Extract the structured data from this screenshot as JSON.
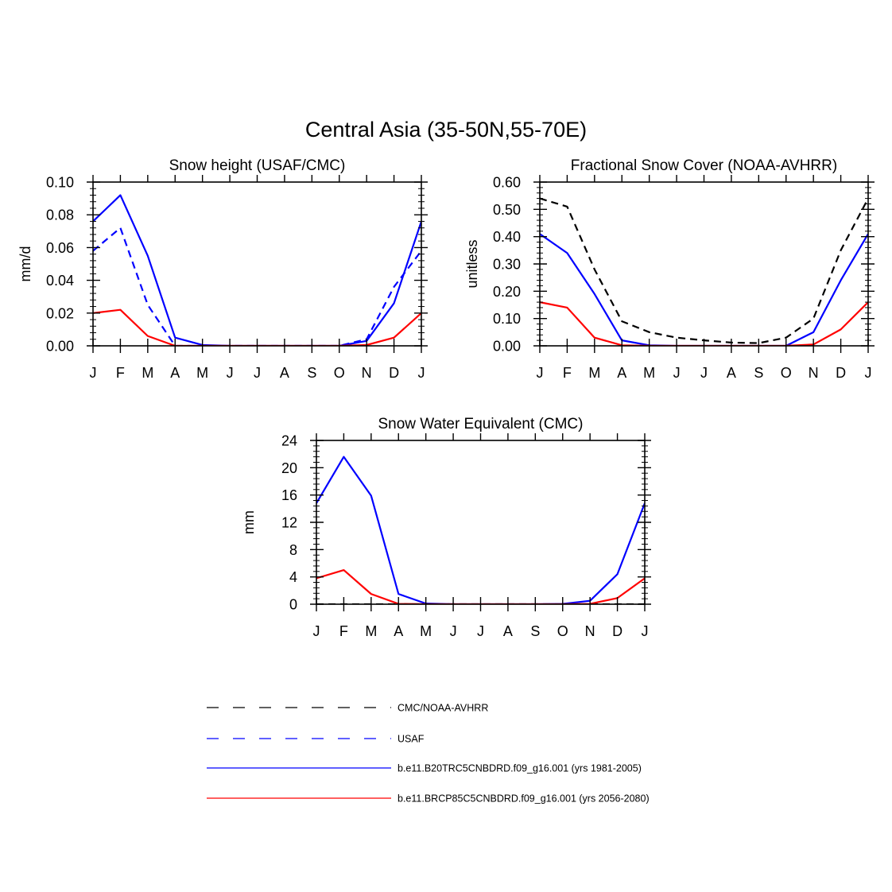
{
  "figure": {
    "title": "Central Asia (35-50N,55-70E)"
  },
  "chart_data": [
    {
      "type": "line",
      "title": "Snow height (USAF/CMC)",
      "xlabel": "",
      "ylabel": "mm/d",
      "categories": [
        "J",
        "F",
        "M",
        "A",
        "M",
        "J",
        "J",
        "A",
        "S",
        "O",
        "N",
        "D",
        "J"
      ],
      "ylim": [
        0,
        0.1
      ],
      "yticks": [
        0,
        0.02,
        0.04,
        0.06,
        0.08,
        0.1
      ],
      "ytick_labels": [
        "0.00",
        "0.02",
        "0.04",
        "0.06",
        "0.08",
        "0.10"
      ],
      "grid": false,
      "series": [
        {
          "name": "USAF",
          "color": "#0000ff",
          "dash": true,
          "values": [
            0.058,
            0.072,
            0.025,
            0.0,
            0.0,
            0.0,
            0.0,
            0.0,
            0.0,
            0.0,
            0.004,
            0.036,
            0.058
          ]
        },
        {
          "name": "b.e11.B20TRC5CNBDRD.f09_g16.001 (yrs 1981-2005)",
          "color": "#0000ff",
          "dash": false,
          "values": [
            0.076,
            0.092,
            0.055,
            0.005,
            0.0005,
            0.0,
            0.0,
            0.0,
            0.0,
            0.0,
            0.003,
            0.026,
            0.076
          ]
        },
        {
          "name": "b.e11.BRCP85C5CNBDRD.f09_g16.001 (yrs 2056-2080)",
          "color": "#ff0000",
          "dash": false,
          "values": [
            0.02,
            0.022,
            0.006,
            0.0,
            0.0,
            0.0,
            0.0,
            0.0,
            0.0,
            0.0,
            0.0005,
            0.005,
            0.02
          ]
        }
      ]
    },
    {
      "type": "line",
      "title": "Fractional Snow Cover (NOAA-AVHRR)",
      "xlabel": "",
      "ylabel": "unitless",
      "categories": [
        "J",
        "F",
        "M",
        "A",
        "M",
        "J",
        "J",
        "A",
        "S",
        "O",
        "N",
        "D",
        "J"
      ],
      "ylim": [
        0,
        0.6
      ],
      "yticks": [
        0,
        0.1,
        0.2,
        0.3,
        0.4,
        0.5,
        0.6
      ],
      "ytick_labels": [
        "0.00",
        "0.10",
        "0.20",
        "0.30",
        "0.40",
        "0.50",
        "0.60"
      ],
      "grid": false,
      "series": [
        {
          "name": "CMC/NOAA-AVHRR",
          "color": "#000000",
          "dash": true,
          "values": [
            0.54,
            0.51,
            0.28,
            0.09,
            0.05,
            0.03,
            0.02,
            0.012,
            0.01,
            0.03,
            0.1,
            0.35,
            0.54
          ]
        },
        {
          "name": "b.e11.B20TRC5CNBDRD.f09_g16.001 (yrs 1981-2005)",
          "color": "#0000ff",
          "dash": false,
          "values": [
            0.41,
            0.34,
            0.19,
            0.02,
            0.002,
            0.0,
            0.0,
            0.0,
            0.0,
            0.0,
            0.05,
            0.24,
            0.41
          ]
        },
        {
          "name": "b.e11.BRCP85C5CNBDRD.f09_g16.001 (yrs 2056-2080)",
          "color": "#ff0000",
          "dash": false,
          "values": [
            0.16,
            0.14,
            0.03,
            0.002,
            0.0,
            0.0,
            0.0,
            0.0,
            0.0,
            0.0,
            0.005,
            0.06,
            0.16
          ]
        }
      ]
    },
    {
      "type": "line",
      "title": "Snow Water Equivalent (CMC)",
      "xlabel": "",
      "ylabel": "mm",
      "categories": [
        "J",
        "F",
        "M",
        "A",
        "M",
        "J",
        "J",
        "A",
        "S",
        "O",
        "N",
        "D",
        "J"
      ],
      "ylim": [
        0,
        24
      ],
      "yticks": [
        0,
        4,
        8,
        12,
        16,
        20,
        24
      ],
      "ytick_labels": [
        "0",
        "4",
        "8",
        "12",
        "16",
        "20",
        "24"
      ],
      "grid": false,
      "series": [
        {
          "name": "CMC/NOAA-AVHRR",
          "color": "#000000",
          "dash": true,
          "values": [
            0,
            0,
            0,
            0,
            0,
            0,
            0,
            0,
            0,
            0,
            0,
            0,
            0
          ]
        },
        {
          "name": "b.e11.B20TRC5CNBDRD.f09_g16.001 (yrs 1981-2005)",
          "color": "#0000ff",
          "dash": false,
          "values": [
            14.8,
            21.6,
            15.9,
            1.5,
            0.1,
            0.0,
            0.0,
            0.0,
            0.0,
            0.05,
            0.5,
            4.4,
            14.8
          ]
        },
        {
          "name": "b.e11.BRCP85C5CNBDRD.f09_g16.001 (yrs 2056-2080)",
          "color": "#ff0000",
          "dash": false,
          "values": [
            3.8,
            5.0,
            1.5,
            0.05,
            0.0,
            0.0,
            0.0,
            0.0,
            0.0,
            0.0,
            0.05,
            0.9,
            3.8
          ]
        }
      ]
    }
  ],
  "legend": {
    "placement": "bottom",
    "items": [
      {
        "label": "CMC/NOAA-AVHRR",
        "color": "#000000",
        "dash": true
      },
      {
        "label": "USAF",
        "color": "#0000ff",
        "dash": true
      },
      {
        "label": "b.e11.B20TRC5CNBDRD.f09_g16.001 (yrs 1981-2005)",
        "color": "#0000ff",
        "dash": false
      },
      {
        "label": "b.e11.BRCP85C5CNBDRD.f09_g16.001 (yrs 2056-2080)",
        "color": "#ff0000",
        "dash": false
      }
    ]
  }
}
